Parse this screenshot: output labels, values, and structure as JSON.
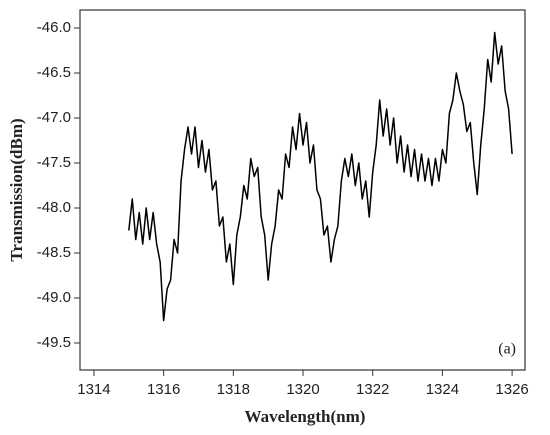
{
  "chart_data": {
    "type": "line",
    "xlabel": "Wavelength(nm)",
    "ylabel": "Transmission(dBm)",
    "annotation": "(a)",
    "color": "#000000",
    "xlim": [
      1313.6,
      1326.37
    ],
    "ylim": [
      -49.8,
      -45.8
    ],
    "xticks": [
      1314,
      1316,
      1318,
      1320,
      1322,
      1324,
      1326
    ],
    "yticks": [
      -49.5,
      {
        "value": -49,
        "label": "-49.0"
      },
      -48.5,
      {
        "value": -48,
        "label": "-48.0"
      },
      -47.5,
      {
        "value": -47,
        "label": "-47.0"
      },
      -46.5,
      {
        "value": -46,
        "label": "-46.0"
      }
    ],
    "x": [
      1315,
      1315.1,
      1315.2,
      1315.3,
      1315.4,
      1315.5,
      1315.6,
      1315.7,
      1315.8,
      1315.9,
      1316,
      1316.1,
      1316.2,
      1316.3,
      1316.4,
      1316.5,
      1316.6,
      1316.7,
      1316.8,
      1316.9,
      1317,
      1317.1,
      1317.2,
      1317.3,
      1317.4,
      1317.5,
      1317.6,
      1317.7,
      1317.8,
      1317.9,
      1318,
      1318.1,
      1318.2,
      1318.3,
      1318.4,
      1318.5,
      1318.6,
      1318.7,
      1318.8,
      1318.9,
      1319,
      1319.1,
      1319.2,
      1319.3,
      1319.4,
      1319.5,
      1319.6,
      1319.7,
      1319.8,
      1319.9,
      1320,
      1320.1,
      1320.2,
      1320.3,
      1320.4,
      1320.5,
      1320.6,
      1320.7,
      1320.8,
      1320.9,
      1321,
      1321.1,
      1321.2,
      1321.3,
      1321.4,
      1321.5,
      1321.6,
      1321.7,
      1321.8,
      1321.9,
      1322,
      1322.1,
      1322.2,
      1322.3,
      1322.4,
      1322.5,
      1322.6,
      1322.7,
      1322.8,
      1322.9,
      1323,
      1323.1,
      1323.2,
      1323.3,
      1323.4,
      1323.5,
      1323.6,
      1323.7,
      1323.8,
      1323.9,
      1324,
      1324.1,
      1324.2,
      1324.3,
      1324.4,
      1324.5,
      1324.6,
      1324.7,
      1324.8,
      1324.9,
      1325,
      1325.1,
      1325.2,
      1325.3,
      1325.4,
      1325.5,
      1325.6,
      1325.7,
      1325.8,
      1325.9,
      1326
    ],
    "values": [
      -48.25,
      -47.9,
      -48.35,
      -48.05,
      -48.4,
      -48.0,
      -48.35,
      -48.05,
      -48.4,
      -48.6,
      -49.25,
      -48.9,
      -48.8,
      -48.35,
      -48.5,
      -47.7,
      -47.35,
      -47.1,
      -47.4,
      -47.1,
      -47.55,
      -47.25,
      -47.6,
      -47.35,
      -47.8,
      -47.7,
      -48.2,
      -48.1,
      -48.6,
      -48.4,
      -48.85,
      -48.3,
      -48.1,
      -47.75,
      -47.9,
      -47.45,
      -47.65,
      -47.55,
      -48.1,
      -48.3,
      -48.8,
      -48.4,
      -48.2,
      -47.8,
      -47.9,
      -47.4,
      -47.55,
      -47.1,
      -47.35,
      -46.95,
      -47.3,
      -47.05,
      -47.5,
      -47.3,
      -47.8,
      -47.9,
      -48.3,
      -48.2,
      -48.6,
      -48.35,
      -48.2,
      -47.7,
      -47.45,
      -47.65,
      -47.4,
      -47.75,
      -47.5,
      -47.9,
      -47.7,
      -48.1,
      -47.6,
      -47.3,
      -46.8,
      -47.2,
      -46.9,
      -47.3,
      -47.0,
      -47.5,
      -47.2,
      -47.6,
      -47.3,
      -47.65,
      -47.35,
      -47.7,
      -47.4,
      -47.7,
      -47.45,
      -47.75,
      -47.45,
      -47.7,
      -47.35,
      -47.5,
      -46.95,
      -46.8,
      -46.5,
      -46.7,
      -46.85,
      -47.15,
      -47.05,
      -47.5,
      -47.85,
      -47.3,
      -46.9,
      -46.35,
      -46.6,
      -46.05,
      -46.4,
      -46.2,
      -46.7,
      -46.9,
      -47.4
    ]
  }
}
